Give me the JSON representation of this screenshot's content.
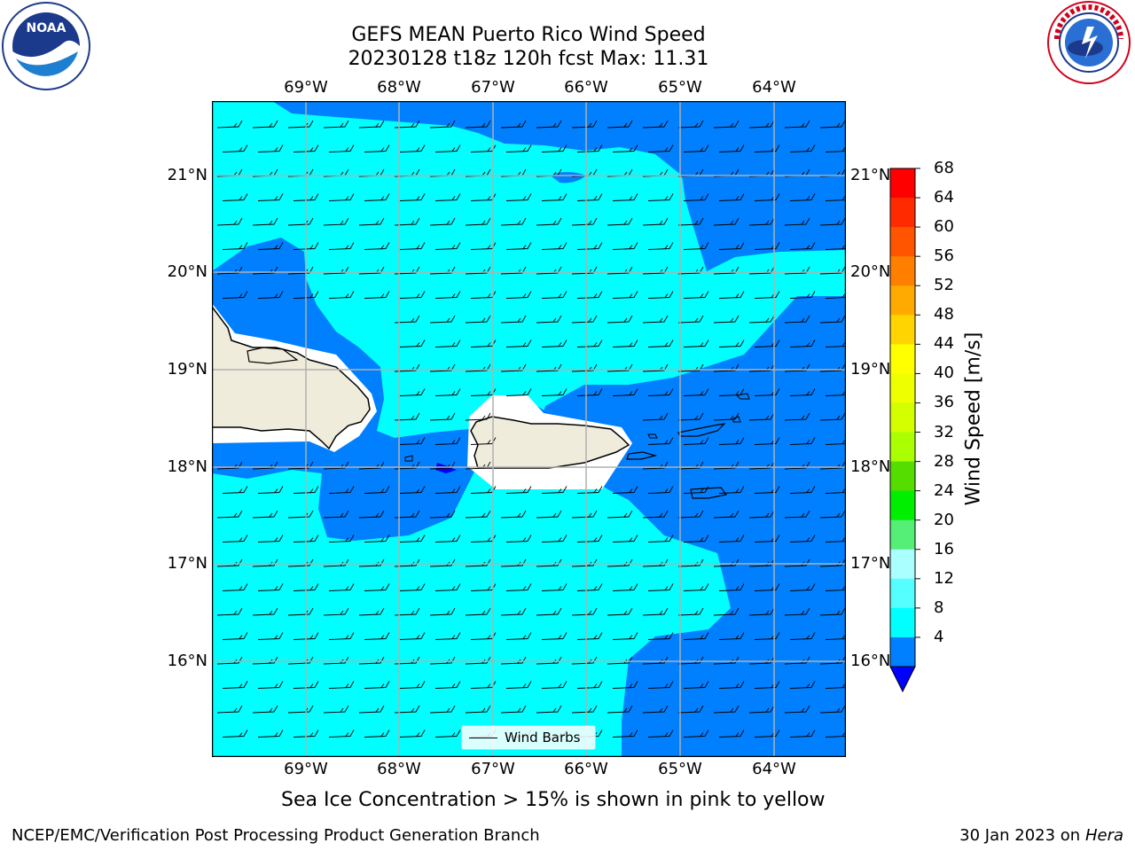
{
  "title_line1": "GEFS MEAN Puerto Rico Wind Speed",
  "title_line2": "20230128 t18z 120h fcst   Max: 11.31",
  "lon_labels": [
    "69°W",
    "68°W",
    "67°W",
    "66°W",
    "65°W",
    "64°W"
  ],
  "lat_labels": [
    "21°N",
    "20°N",
    "19°N",
    "18°N",
    "17°N",
    "16°N"
  ],
  "legend_label": "Wind Barbs",
  "colorbar": {
    "label": "Wind Speed [m/s]",
    "ticks": [
      "68",
      "64",
      "60",
      "56",
      "52",
      "48",
      "44",
      "40",
      "36",
      "32",
      "28",
      "24",
      "20",
      "16",
      "12",
      "8",
      "4"
    ],
    "colors": [
      "#ff0000",
      "#ff2a00",
      "#ff5500",
      "#ff7f00",
      "#ffaa00",
      "#ffd400",
      "#ffff00",
      "#eeff00",
      "#d4ff00",
      "#aaff00",
      "#55dd00",
      "#00ee00",
      "#55ee77",
      "#aaffff",
      "#55ffff",
      "#00ffff",
      "#0080ff"
    ],
    "under_color": "#0000ff"
  },
  "colors": {
    "ocean_light": "#00ffff",
    "ocean_dark": "#0080ff",
    "land": "#efecdc",
    "grid": "#b0b0b0"
  },
  "caption": "Sea Ice Concentration > 15% is shown in pink to yellow",
  "footer_left": "NCEP/EMC/Verification Post Processing Product Generation Branch",
  "footer_date": "30 Jan 2023 on",
  "footer_host": "Hera",
  "logos": {
    "noaa": "NOAA",
    "nws": "NATIONAL WEATHER SERVICE"
  }
}
